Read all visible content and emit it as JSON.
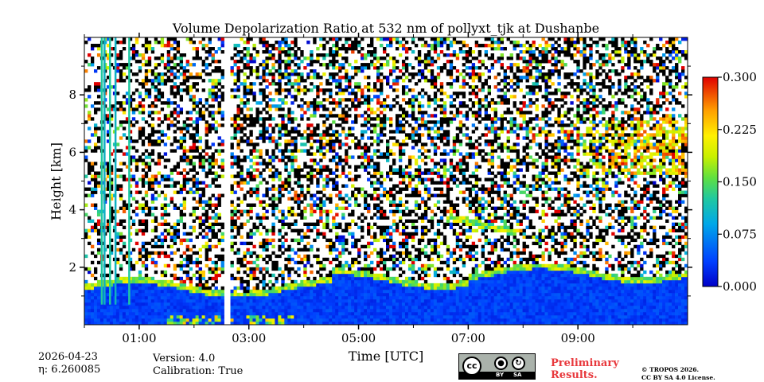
{
  "chart_data": {
    "type": "heatmap",
    "title": "Volume Depolarization Ratio at 532 nm of pollyxt_tjk at Dushanbe",
    "xlabel": "Time [UTC]",
    "ylabel": "Height [km]",
    "x_range_hours": [
      0.0,
      11.0
    ],
    "ylim_km": [
      0.0,
      10.0
    ],
    "xticks": [
      {
        "value": 1,
        "label": "01:00"
      },
      {
        "value": 3,
        "label": "03:00"
      },
      {
        "value": 5,
        "label": "05:00"
      },
      {
        "value": 7,
        "label": "07:00"
      },
      {
        "value": 9,
        "label": "09:00"
      }
    ],
    "x_minor_ticks": [
      0,
      2,
      4,
      6,
      8,
      10
    ],
    "yticks": [
      {
        "value": 2,
        "label": "2"
      },
      {
        "value": 4,
        "label": "4"
      },
      {
        "value": 6,
        "label": "6"
      },
      {
        "value": 8,
        "label": "8"
      }
    ],
    "colorbar": {
      "min": 0.0,
      "max": 0.3,
      "ticks": [
        {
          "value": 0.0,
          "label": "0.000"
        },
        {
          "value": 0.075,
          "label": "0.075"
        },
        {
          "value": 0.15,
          "label": "0.150"
        },
        {
          "value": 0.225,
          "label": "0.225"
        },
        {
          "value": 0.3,
          "label": "0.300"
        }
      ],
      "colormap": "jet"
    },
    "features": {
      "boundary_layer_top_km": 1.4,
      "gap_hours": [
        2.52,
        2.68
      ],
      "cloud_layer": {
        "start_h": 6.65,
        "end_h": 7.9,
        "top_km": 3.75,
        "bottom_km": 3.2
      },
      "cirrus_region": {
        "start_h": 9.0,
        "end_h": 11.0,
        "bottom_km": 5.2,
        "top_km": 7.2
      },
      "vertical_streaks_h": [
        0.3,
        0.35,
        0.45,
        0.55,
        0.8
      ]
    }
  },
  "footer": {
    "date": "2026-04-23",
    "eta": "η: 6.260085",
    "version": "Version: 4.0",
    "calibration": "Calibration: True",
    "cc_by": "BY",
    "cc_sa": "SA",
    "cc_mark": "cc",
    "prelim_line1": "Preliminary",
    "prelim_line2": "Results.",
    "tropos_line1": "© TROPOS 2026.",
    "tropos_line2": "CC BY SA 4.0 License."
  }
}
